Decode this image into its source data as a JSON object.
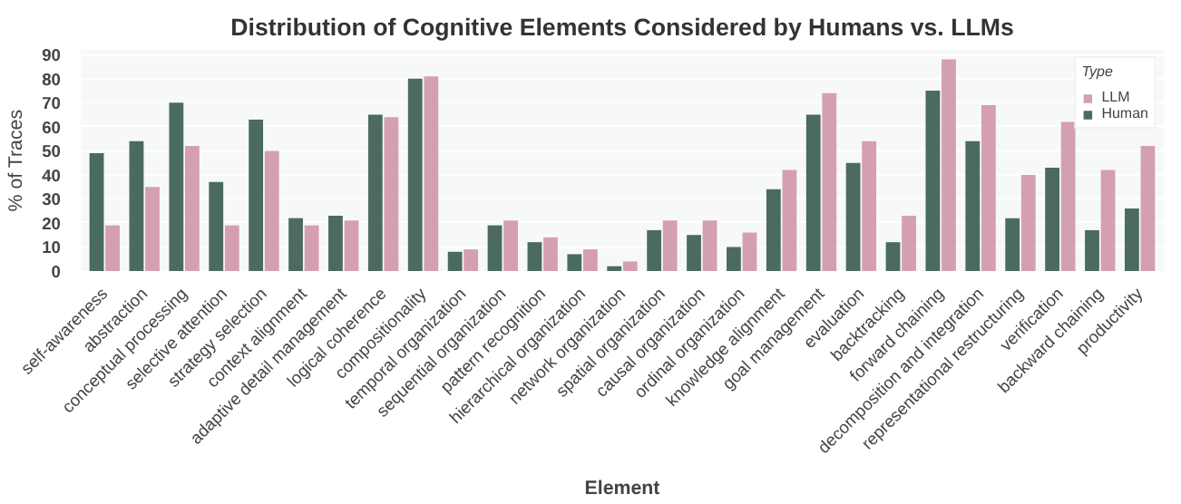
{
  "chart_data": {
    "type": "bar",
    "title": "Distribution of Cognitive Elements Considered by Humans vs. LLMs",
    "xlabel": "Element",
    "ylabel": "% of Traces",
    "legend_title": "Type",
    "categories": [
      "self-awareness",
      "abstraction",
      "conceptual processing",
      "selective attention",
      "strategy selection",
      "context alignment",
      "adaptive detail management",
      "logical coherence",
      "compositionality",
      "temporal organization",
      "sequential organization",
      "pattern recognition",
      "hierarchical organization",
      "network organization",
      "spatial organization",
      "causal organization",
      "ordinal organization",
      "knowledge alignment",
      "goal management",
      "evaluation",
      "backtracking",
      "forward chaining",
      "decomposition and integration",
      "representational restructuring",
      "verification",
      "backward chaining",
      "productivity"
    ],
    "series": [
      {
        "name": "Human",
        "color": "#4a6b5d",
        "values": [
          49,
          54,
          70,
          37,
          63,
          22,
          23,
          65,
          80,
          8,
          19,
          12,
          7,
          2,
          17,
          15,
          10,
          34,
          65,
          45,
          12,
          75,
          54,
          22,
          43,
          17,
          26
        ]
      },
      {
        "name": "LLM",
        "color": "#d4a0b0",
        "values": [
          19,
          35,
          52,
          19,
          50,
          19,
          21,
          64,
          81,
          9,
          21,
          14,
          9,
          4,
          21,
          21,
          16,
          42,
          74,
          54,
          23,
          88,
          69,
          40,
          62,
          42,
          52
        ]
      }
    ],
    "ylim": [
      0,
      92
    ],
    "yticks": [
      0,
      10,
      20,
      30,
      40,
      50,
      60,
      70,
      80,
      90
    ],
    "grid": "y",
    "legend": "top right"
  }
}
